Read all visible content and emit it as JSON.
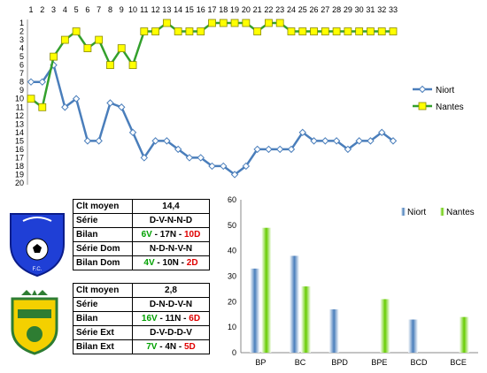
{
  "rank_chart_data": {
    "type": "line",
    "x": [
      1,
      2,
      3,
      4,
      5,
      6,
      7,
      8,
      9,
      10,
      11,
      12,
      13,
      14,
      15,
      16,
      17,
      18,
      19,
      20,
      21,
      22,
      23,
      24,
      25,
      26,
      27,
      28,
      29,
      30,
      31,
      32,
      33
    ],
    "ylim": [
      20,
      0
    ],
    "yticks": [
      1,
      2,
      3,
      4,
      5,
      6,
      7,
      8,
      9,
      10,
      11,
      12,
      13,
      14,
      15,
      16,
      17,
      18,
      19,
      20
    ],
    "series": [
      {
        "name": "Niort",
        "color": "#4a7ebb",
        "values": [
          8,
          8,
          6,
          11,
          10,
          15,
          15,
          10.5,
          11,
          14,
          17,
          15,
          15,
          16,
          17,
          17,
          18,
          18,
          19,
          18,
          16,
          16,
          16,
          16,
          14,
          15,
          15,
          15,
          16,
          15,
          15,
          14,
          15
        ]
      },
      {
        "name": "Nantes",
        "color": "#33a02c",
        "values": [
          10,
          11,
          5,
          3,
          2,
          4,
          3,
          6,
          4,
          6,
          2,
          2,
          1,
          2,
          2,
          2,
          1,
          1,
          1,
          1,
          2,
          1,
          1,
          2,
          2,
          2,
          2,
          2,
          2,
          2,
          2,
          2,
          2
        ]
      }
    ]
  },
  "chart_data": {
    "type": "bar",
    "categories": [
      "BP",
      "BC",
      "BPD",
      "BPE",
      "BCD",
      "BCE"
    ],
    "ylim": [
      0,
      60
    ],
    "yticks": [
      0,
      10,
      20,
      30,
      40,
      50,
      60
    ],
    "series": [
      {
        "name": "Niort",
        "color": "#4a7ebb",
        "values": [
          33,
          38,
          17,
          0,
          13,
          0
        ]
      },
      {
        "name": "Nantes",
        "color": "#66cc00",
        "values": [
          49,
          26,
          0,
          21,
          0,
          14
        ]
      }
    ]
  },
  "niort_table": {
    "rows": [
      {
        "label": "Clt moyen",
        "value": "14,4"
      },
      {
        "label": "Série",
        "value": "D-V-N-N-D"
      },
      {
        "label": "Bilan",
        "w": "6V",
        "d": "17N",
        "l": "10D"
      },
      {
        "label": "Série Dom",
        "value": "N-D-N-V-N"
      },
      {
        "label": "Bilan Dom",
        "w": "4V",
        "d": "10N",
        "l": "2D"
      }
    ]
  },
  "nantes_table": {
    "rows": [
      {
        "label": "Clt moyen",
        "value": "2,8"
      },
      {
        "label": "Série",
        "value": "D-N-D-V-N"
      },
      {
        "label": "Bilan",
        "w": "16V",
        "d": "11N",
        "l": "6D"
      },
      {
        "label": "Série Ext",
        "value": "D-V-D-D-V"
      },
      {
        "label": "Bilan Ext",
        "w": "7V",
        "d": "4N",
        "l": "5D"
      }
    ]
  },
  "separator": " - ",
  "niort_logo": {
    "text": "CHAMOIS NIORTAIS F.C.",
    "color": "#1f3fd6"
  },
  "nantes_logo": {
    "text": "FC NANTES",
    "color": "#f4d000"
  }
}
